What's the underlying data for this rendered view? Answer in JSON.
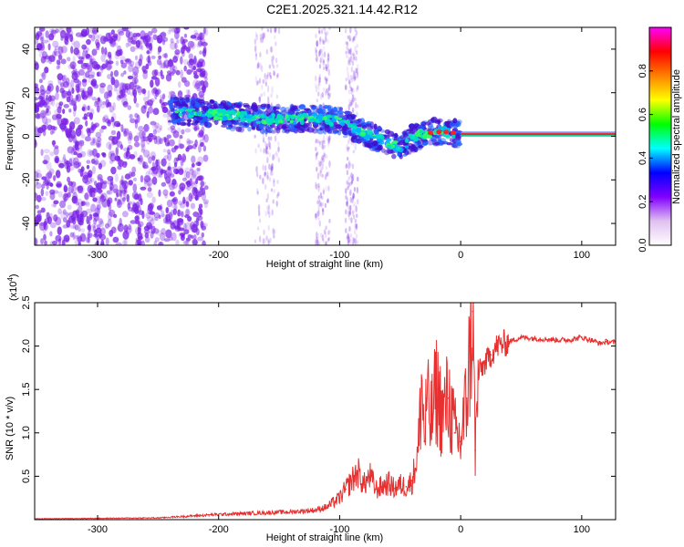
{
  "title": "C2E1.2025.321.14.42.R12",
  "colors": {
    "scatter": "#7a22e6",
    "trace_core": "#00e0a0",
    "ridge_hot": "#ff2020",
    "snr_line": "#e83030",
    "axis": "#000000"
  },
  "chart_data": [
    {
      "type": "heatmap",
      "title": "",
      "xlabel": "Height of straight line (km)",
      "ylabel": "Frequency (Hz)",
      "xlim": [
        -352,
        128
      ],
      "ylim": [
        -50,
        50
      ],
      "xticks": [
        -300,
        -200,
        -100,
        0,
        100
      ],
      "yticks": [
        -40,
        -20,
        0,
        20,
        40
      ],
      "colorbar": {
        "label": "Normalized spectral amplitude",
        "range": [
          0,
          1
        ],
        "ticks": [
          "0.0",
          "0.2",
          "0.4",
          "0.6",
          "0.8"
        ],
        "tick_values": [
          0.0,
          0.2,
          0.4,
          0.6,
          0.8
        ],
        "stops": [
          "#ffffff",
          "#e0c0f0",
          "#8000ff",
          "#0000ff",
          "#00ffff",
          "#00ff00",
          "#ffff00",
          "#ff8000",
          "#ff0000",
          "#ff00ff"
        ]
      },
      "ridge": {
        "x": [
          -240,
          -200,
          -160,
          -120,
          -100,
          -80,
          -60,
          -50,
          -40,
          -30,
          -20,
          -10,
          0,
          10,
          50,
          100,
          128
        ],
        "y": [
          12,
          10,
          8,
          8,
          7,
          2,
          -3,
          -5,
          -1,
          1,
          2,
          2,
          1,
          1,
          1,
          1,
          1
        ],
        "noise_region": [
          -352,
          -230
        ],
        "constant_line_from": 0
      }
    },
    {
      "type": "line",
      "title": "",
      "xlabel": "Height of straight line (km)",
      "ylabel": "SNR (10 * v/v)",
      "exponent_label": "(x10",
      "exponent_power": "4",
      "exponent_close": ")",
      "xlim": [
        -352,
        128
      ],
      "ylim": [
        0,
        25000
      ],
      "xticks": [
        -300,
        -200,
        -100,
        0,
        100
      ],
      "yticks": [
        5000,
        10000,
        15000,
        20000,
        25000
      ],
      "ytick_labels": [
        "0.5",
        "1.0",
        "1.5",
        "2.0",
        "2.5"
      ],
      "series": [
        {
          "name": "SNR",
          "x": [
            -352,
            -300,
            -250,
            -200,
            -180,
            -160,
            -140,
            -120,
            -110,
            -100,
            -95,
            -90,
            -85,
            -80,
            -75,
            -70,
            -65,
            -60,
            -55,
            -50,
            -45,
            -40,
            -35,
            -32,
            -30,
            -28,
            -25,
            -20,
            -15,
            -10,
            -5,
            0,
            5,
            10,
            12,
            15,
            20,
            25,
            30,
            40,
            50,
            60,
            70,
            80,
            90,
            100,
            110,
            115,
            120,
            128
          ],
          "values": [
            100,
            150,
            200,
            600,
            700,
            800,
            900,
            1100,
            1500,
            2500,
            3500,
            4500,
            5500,
            4000,
            5000,
            3500,
            3800,
            4200,
            3600,
            4000,
            3800,
            4500,
            8000,
            16000,
            9000,
            14000,
            11000,
            15000,
            12000,
            14000,
            10000,
            9000,
            14000,
            24000,
            8000,
            17000,
            18000,
            19000,
            20000,
            20500,
            21000,
            20900,
            20800,
            20700,
            20700,
            21000,
            20600,
            20300,
            20500,
            20400
          ]
        }
      ]
    }
  ]
}
